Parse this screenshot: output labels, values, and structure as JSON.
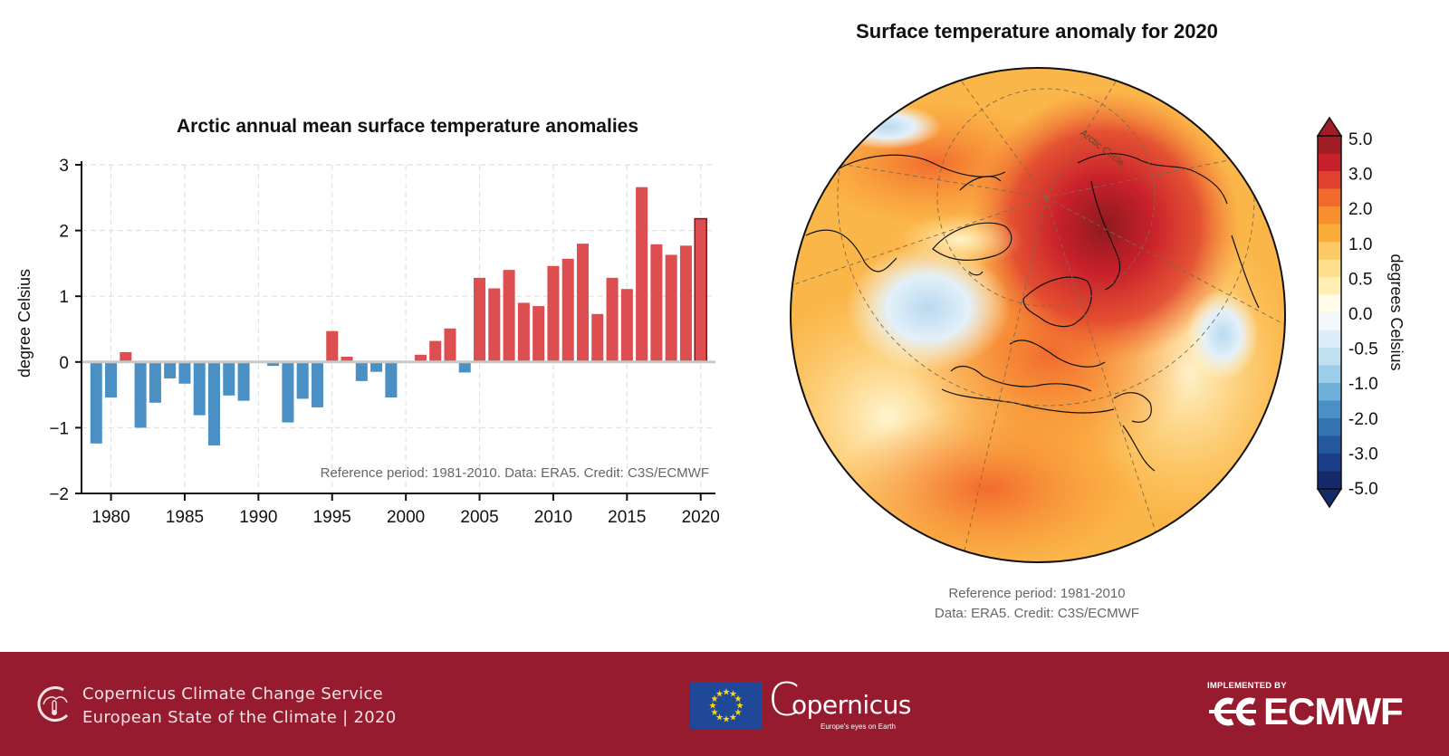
{
  "chart_data": [
    {
      "type": "bar",
      "title": "Arctic annual mean surface temperature anomalies",
      "xlabel": "",
      "ylabel": "degree Celsius",
      "ylim": [
        -2,
        3
      ],
      "xlim": [
        1978,
        2021
      ],
      "grid": true,
      "x_ticks": [
        1980,
        1985,
        1990,
        1995,
        2000,
        2005,
        2010,
        2015,
        2020
      ],
      "y_ticks": [
        3,
        2,
        1,
        0,
        -1,
        -2
      ],
      "y_tick_labels": [
        "3",
        "2",
        "1",
        "0",
        "−1",
        "−2"
      ],
      "annotation": "Reference period: 1981-2010. Data: ERA5. Credit: C3S/ECMWF",
      "positive_color": "#dc4e4f",
      "negative_color": "#4a90c4",
      "highlight_year": 2020,
      "highlight_edge_color": "#7a1a1f",
      "categories": [
        1979,
        1980,
        1981,
        1982,
        1983,
        1984,
        1985,
        1986,
        1987,
        1988,
        1989,
        1990,
        1991,
        1992,
        1993,
        1994,
        1995,
        1996,
        1997,
        1998,
        1999,
        2000,
        2001,
        2002,
        2003,
        2004,
        2005,
        2006,
        2007,
        2008,
        2009,
        2010,
        2011,
        2012,
        2013,
        2014,
        2015,
        2016,
        2017,
        2018,
        2019,
        2020
      ],
      "values": [
        -1.24,
        -0.54,
        0.15,
        -1.0,
        -0.62,
        -0.25,
        -0.33,
        -0.81,
        -1.27,
        -0.51,
        -0.59,
        0.0,
        -0.06,
        -0.92,
        -0.56,
        -0.69,
        0.47,
        0.08,
        -0.29,
        -0.15,
        -0.54,
        0.0,
        0.11,
        0.32,
        0.51,
        -0.16,
        1.28,
        1.12,
        1.4,
        0.9,
        0.85,
        1.46,
        1.57,
        1.8,
        0.73,
        1.28,
        1.11,
        2.66,
        1.79,
        1.63,
        1.77,
        2.18
      ]
    },
    {
      "type": "heatmap",
      "title": "Surface temperature anomaly for 2020",
      "projection": "orthographic (Northern Hemisphere, Europe/Arctic centred)",
      "map_label": "Arctic Circle",
      "colorbar": {
        "label": "degrees Celsius",
        "tick_labels": [
          "5.0",
          "3.0",
          "2.0",
          "1.0",
          "0.5",
          "0.0",
          "-0.5",
          "-1.0",
          "-2.0",
          "-3.0",
          "-5.0"
        ],
        "range": [
          -5,
          5
        ],
        "extend": "both",
        "colors_top_to_bottom": [
          "#a11d26",
          "#c8202b",
          "#e0402e",
          "#f26a2e",
          "#f88f2f",
          "#fbad3a",
          "#fdc866",
          "#fee08c",
          "#ffefb5",
          "#fffbe8",
          "#f3f8fc",
          "#dcecf8",
          "#c2e0f2",
          "#9dcde9",
          "#6fb0db",
          "#4a90c4",
          "#3473b2",
          "#25579f",
          "#1b3d87",
          "#152a6b"
        ]
      },
      "annotation_lines": [
        "Reference period: 1981-2010",
        "Data: ERA5. Credit: C3S/ECMWF"
      ]
    }
  ],
  "footer": {
    "line1": "Copernicus Climate Change Service",
    "line2": "European State of the Climate | 2020",
    "copernicus_wordmark": "opernicus",
    "copernicus_c": "C",
    "copernicus_tagline": "Europe's eyes on Earth",
    "implemented_by": "IMPLEMENTED BY",
    "ecmwf": "ECMWF",
    "background_color": "#971b2f"
  }
}
